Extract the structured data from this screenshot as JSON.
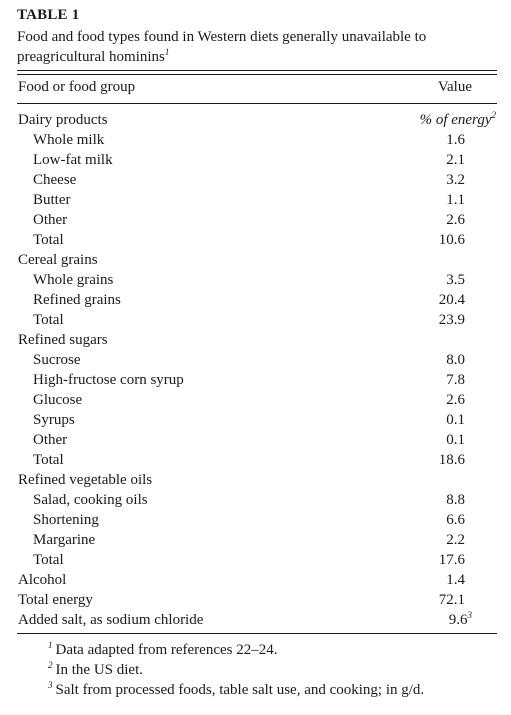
{
  "table": {
    "label": "TABLE 1",
    "caption": "Food and food types found in Western diets generally unavailable to preagricultural hominins",
    "caption_note": "1",
    "header": {
      "name": "Food or food group",
      "value": "Value"
    }
  },
  "rows": [
    {
      "name": "Dairy products",
      "value": "% of energy",
      "note": "2",
      "indent": false,
      "unit": true
    },
    {
      "name": "Whole milk",
      "value": "1.6",
      "indent": true
    },
    {
      "name": "Low-fat milk",
      "value": "2.1",
      "indent": true
    },
    {
      "name": "Cheese",
      "value": "3.2",
      "indent": true
    },
    {
      "name": "Butter",
      "value": "1.1",
      "indent": true
    },
    {
      "name": "Other",
      "value": "2.6",
      "indent": true
    },
    {
      "name": "Total",
      "value": "10.6",
      "indent": true
    },
    {
      "name": "Cereal grains",
      "value": "",
      "indent": false
    },
    {
      "name": "Whole grains",
      "value": "3.5",
      "indent": true
    },
    {
      "name": "Refined grains",
      "value": "20.4",
      "indent": true
    },
    {
      "name": "Total",
      "value": "23.9",
      "indent": true
    },
    {
      "name": "Refined sugars",
      "value": "",
      "indent": false
    },
    {
      "name": "Sucrose",
      "value": "8.0",
      "indent": true
    },
    {
      "name": "High-fructose corn syrup",
      "value": "7.8",
      "indent": true
    },
    {
      "name": "Glucose",
      "value": "2.6",
      "indent": true
    },
    {
      "name": "Syrups",
      "value": "0.1",
      "indent": true
    },
    {
      "name": "Other",
      "value": "0.1",
      "indent": true
    },
    {
      "name": "Total",
      "value": "18.6",
      "indent": true
    },
    {
      "name": "Refined vegetable oils",
      "value": "",
      "indent": false
    },
    {
      "name": "Salad, cooking oils",
      "value": "8.8",
      "indent": true
    },
    {
      "name": "Shortening",
      "value": "6.6",
      "indent": true
    },
    {
      "name": "Margarine",
      "value": "2.2",
      "indent": true
    },
    {
      "name": "Total",
      "value": "17.6",
      "indent": true
    },
    {
      "name": "Alcohol",
      "value": "1.4",
      "indent": false
    },
    {
      "name": "Total energy",
      "value": "72.1",
      "indent": false
    },
    {
      "name": "Added salt, as sodium chloride",
      "value": "9.6",
      "note": "3",
      "indent": false
    }
  ],
  "footnotes": [
    {
      "mark": "1",
      "text": "Data adapted from references 22–24."
    },
    {
      "mark": "2",
      "text": "In the US diet."
    },
    {
      "mark": "3",
      "text": "Salt from processed foods, table salt use, and cooking; in g/d."
    }
  ]
}
